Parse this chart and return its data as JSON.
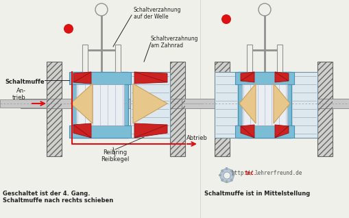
{
  "bg_color": "#f0f0eb",
  "labels": {
    "schaltmuffe": "Schaltmuffe",
    "schaltverzahnung_welle": "Schaltverzahnung\nauf der Welle",
    "schaltverzahnung_zahnrad": "Schaltverzahnung\nam Zahnrad",
    "antrieb": "An-\ntrieb",
    "abtrieb": "Abtrieb",
    "reibring": "Reibring",
    "reibkegel": "Reibkegel",
    "bottom_left": "Geschaltet ist der 4. Gang.\nSchaltmuffe nach rechts schieben",
    "bottom_right": "Schaltmuffe ist in Mittelstellung",
    "url_part1": "http://",
    "url_part2": "tec.",
    "url_part3": "lehrerfreund.de"
  },
  "colors": {
    "blue": "#7bbdd4",
    "blue_dark": "#4a8fb5",
    "red": "#cc2222",
    "beige": "#e8c88a",
    "beige_dark": "#c8a060",
    "gray_hatch": "#b0b0b0",
    "gray_shaft": "#c8c8c8",
    "gray_dark": "#808080",
    "gear_gray": "#c0c8d0",
    "gear_lines": "#9aabb8",
    "black": "#222222",
    "red_arrow": "#dd1111",
    "url_red": "#cc0000",
    "url_gray": "#555555",
    "fork_gray": "#909090",
    "white_bg": "#f0f0eb"
  }
}
